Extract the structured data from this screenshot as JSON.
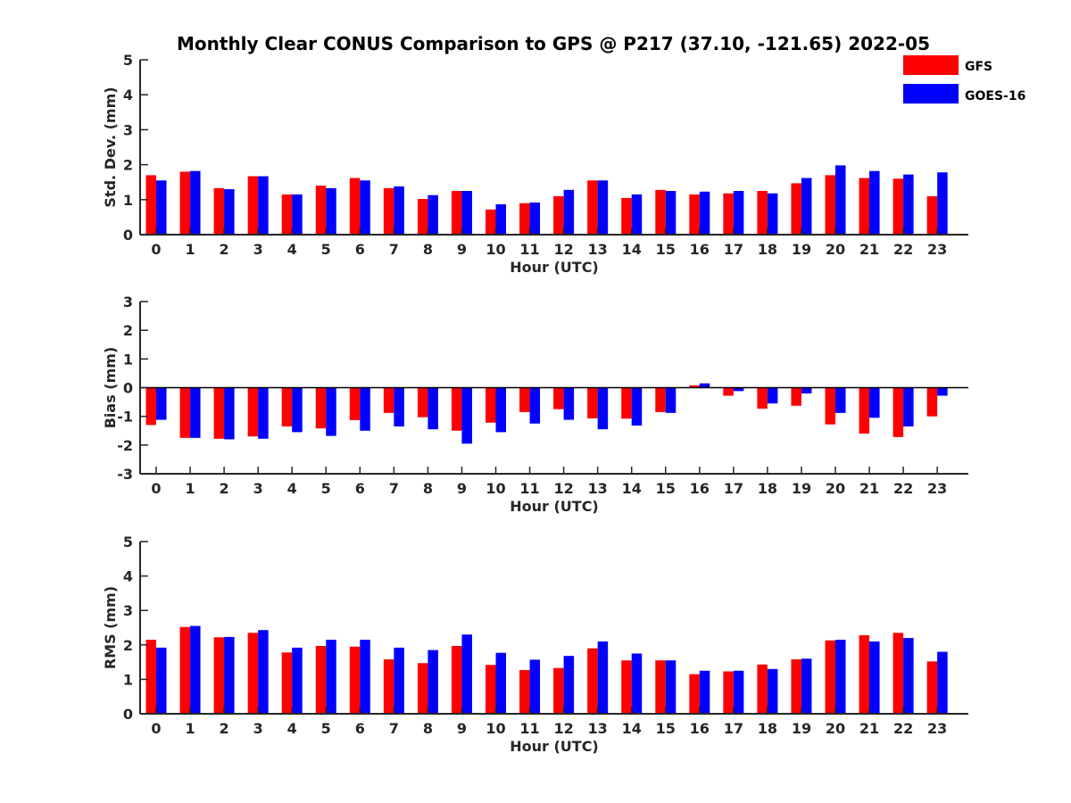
{
  "figure": {
    "title": "Monthly Clear CONUS Comparison to GPS @ P217 (37.10, -121.65) 2022-05"
  },
  "legend": [
    {
      "name": "GFS",
      "color": "#ff0000"
    },
    {
      "name": "GOES-16",
      "color": "#0000ff"
    }
  ],
  "chart_data": [
    {
      "type": "bar",
      "title": "Monthly Clear CONUS Comparison to GPS @ P217 (37.10, -121.65) 2022-05",
      "xlabel": "Hour (UTC)",
      "ylabel": "Std. Dev. (mm)",
      "ylim": [
        0,
        5
      ],
      "yticks": [
        "0",
        "1",
        "2",
        "3",
        "4",
        "5"
      ],
      "categories": [
        "0",
        "1",
        "2",
        "3",
        "4",
        "5",
        "6",
        "7",
        "8",
        "9",
        "10",
        "11",
        "12",
        "13",
        "14",
        "15",
        "16",
        "17",
        "18",
        "19",
        "20",
        "21",
        "22",
        "23"
      ],
      "series": [
        {
          "name": "GFS",
          "color": "#ff0000",
          "values": [
            1.7,
            1.8,
            1.33,
            1.67,
            1.15,
            1.4,
            1.62,
            1.33,
            1.02,
            1.25,
            0.72,
            0.9,
            1.1,
            1.55,
            1.05,
            1.28,
            1.15,
            1.18,
            1.25,
            1.47,
            1.7,
            1.62,
            1.6,
            1.1
          ]
        },
        {
          "name": "GOES-16",
          "color": "#0000ff",
          "values": [
            1.55,
            1.82,
            1.3,
            1.67,
            1.15,
            1.33,
            1.55,
            1.38,
            1.13,
            1.25,
            0.87,
            0.92,
            1.28,
            1.55,
            1.15,
            1.25,
            1.23,
            1.25,
            1.18,
            1.62,
            1.98,
            1.82,
            1.72,
            1.78
          ]
        }
      ]
    },
    {
      "type": "bar",
      "title": "",
      "xlabel": "Hour (UTC)",
      "ylabel": "Bias (mm)",
      "ylim": [
        -3,
        3
      ],
      "yticks": [
        "-3",
        "-2",
        "-1",
        "0",
        "1",
        "2",
        "3"
      ],
      "categories": [
        "0",
        "1",
        "2",
        "3",
        "4",
        "5",
        "6",
        "7",
        "8",
        "9",
        "10",
        "11",
        "12",
        "13",
        "14",
        "15",
        "16",
        "17",
        "18",
        "19",
        "20",
        "21",
        "22",
        "23"
      ],
      "series": [
        {
          "name": "GFS",
          "color": "#ff0000",
          "values": [
            -1.3,
            -1.75,
            -1.78,
            -1.7,
            -1.35,
            -1.42,
            -1.13,
            -0.88,
            -1.03,
            -1.5,
            -1.22,
            -0.85,
            -0.75,
            -1.07,
            -1.08,
            -0.85,
            0.08,
            -0.28,
            -0.73,
            -0.63,
            -1.28,
            -1.6,
            -1.72,
            -1.0
          ]
        },
        {
          "name": "GOES-16",
          "color": "#0000ff",
          "values": [
            -1.12,
            -1.75,
            -1.8,
            -1.78,
            -1.55,
            -1.68,
            -1.5,
            -1.35,
            -1.45,
            -1.95,
            -1.55,
            -1.25,
            -1.12,
            -1.45,
            -1.32,
            -0.88,
            0.15,
            -0.12,
            -0.55,
            -0.2,
            -0.88,
            -1.05,
            -1.35,
            -0.28
          ]
        }
      ]
    },
    {
      "type": "bar",
      "title": "",
      "xlabel": "Hour (UTC)",
      "ylabel": "RMS (mm)",
      "ylim": [
        0,
        5
      ],
      "yticks": [
        "0",
        "1",
        "2",
        "3",
        "4",
        "5"
      ],
      "categories": [
        "0",
        "1",
        "2",
        "3",
        "4",
        "5",
        "6",
        "7",
        "8",
        "9",
        "10",
        "11",
        "12",
        "13",
        "14",
        "15",
        "16",
        "17",
        "18",
        "19",
        "20",
        "21",
        "22",
        "23"
      ],
      "series": [
        {
          "name": "GFS",
          "color": "#ff0000",
          "values": [
            2.15,
            2.52,
            2.22,
            2.35,
            1.78,
            1.97,
            1.95,
            1.58,
            1.47,
            1.97,
            1.42,
            1.27,
            1.33,
            1.9,
            1.55,
            1.55,
            1.15,
            1.23,
            1.43,
            1.58,
            2.13,
            2.28,
            2.35,
            1.52
          ]
        },
        {
          "name": "GOES-16",
          "color": "#0000ff",
          "values": [
            1.92,
            2.55,
            2.23,
            2.43,
            1.92,
            2.15,
            2.15,
            1.92,
            1.85,
            2.3,
            1.77,
            1.57,
            1.68,
            2.1,
            1.75,
            1.55,
            1.25,
            1.25,
            1.3,
            1.6,
            2.15,
            2.1,
            2.2,
            1.8
          ]
        }
      ]
    }
  ]
}
